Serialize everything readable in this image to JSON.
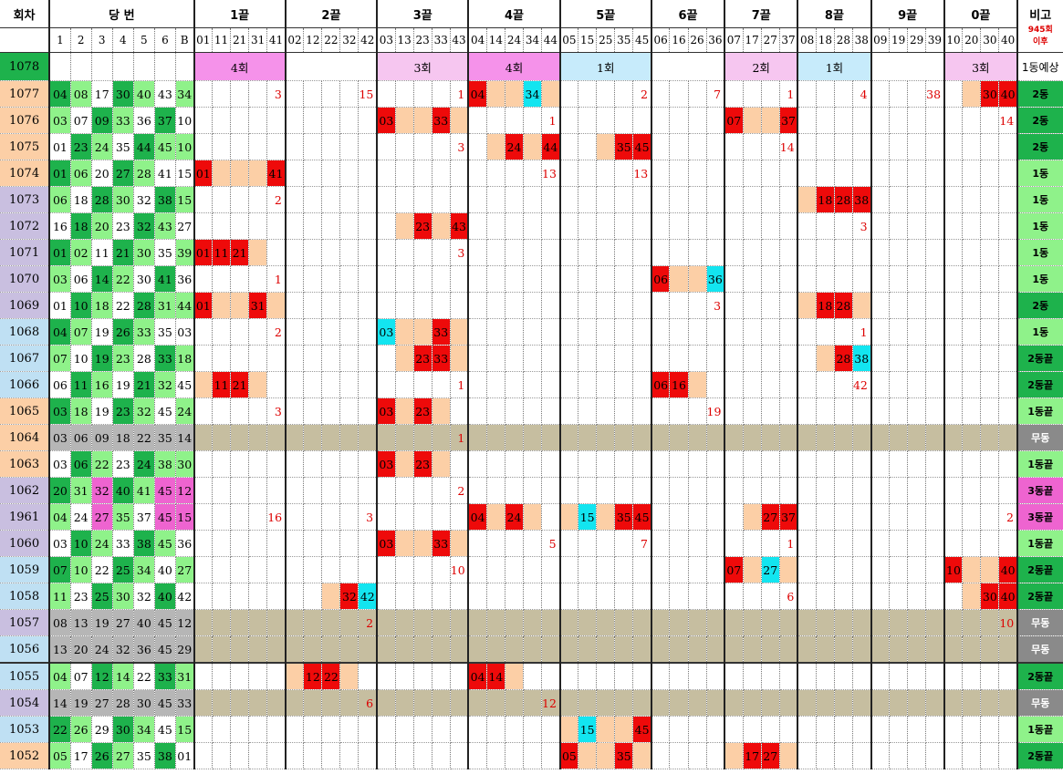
{
  "header": {
    "round_label": "회차",
    "draw_label": "당 번",
    "groups": [
      "1끝",
      "2끝",
      "3끝",
      "4끝",
      "5끝",
      "6끝",
      "7끝",
      "8끝",
      "9끝",
      "0끝"
    ],
    "note_label": "비고",
    "note_sub1": "945회",
    "note_sub2": "이후",
    "ball_cols": [
      "1",
      "2",
      "3",
      "4",
      "5",
      "6",
      "B"
    ],
    "group_cols": [
      [
        "01",
        "11",
        "21",
        "31",
        "41"
      ],
      [
        "02",
        "12",
        "22",
        "32",
        "42"
      ],
      [
        "03",
        "13",
        "23",
        "33",
        "43"
      ],
      [
        "04",
        "14",
        "24",
        "34",
        "44"
      ],
      [
        "05",
        "15",
        "25",
        "35",
        "45"
      ],
      [
        "06",
        "16",
        "26",
        "36"
      ],
      [
        "07",
        "17",
        "27",
        "37"
      ],
      [
        "08",
        "18",
        "28",
        "38"
      ],
      [
        "09",
        "19",
        "29",
        "39"
      ],
      [
        "10",
        "20",
        "30",
        "40"
      ]
    ]
  },
  "forecast_row": {
    "round": "1078",
    "band_1": "4회",
    "band_3": "3회",
    "band_4": "4회",
    "band_5": "1회",
    "band_7": "2회",
    "band_8": "1회",
    "band_0": "3회",
    "note": "1동예상"
  },
  "rows": [
    {
      "round": "1077",
      "nums": [
        "04",
        "08",
        "17",
        "30",
        "40",
        "43",
        "34"
      ],
      "note": "2동"
    },
    {
      "round": "1076",
      "nums": [
        "03",
        "07",
        "09",
        "33",
        "36",
        "37",
        "10"
      ],
      "note": "2동"
    },
    {
      "round": "1075",
      "nums": [
        "01",
        "23",
        "24",
        "35",
        "44",
        "45",
        "10"
      ],
      "note": "2동"
    },
    {
      "round": "1074",
      "nums": [
        "01",
        "06",
        "20",
        "27",
        "28",
        "41",
        "15"
      ],
      "note": "1동"
    },
    {
      "round": "1073",
      "nums": [
        "06",
        "18",
        "28",
        "30",
        "32",
        "38",
        "15"
      ],
      "note": "1동"
    },
    {
      "round": "1072",
      "nums": [
        "16",
        "18",
        "20",
        "23",
        "32",
        "43",
        "27"
      ],
      "note": "1동"
    },
    {
      "round": "1071",
      "nums": [
        "01",
        "02",
        "11",
        "21",
        "30",
        "35",
        "39"
      ],
      "note": "1동"
    },
    {
      "round": "1070",
      "nums": [
        "03",
        "06",
        "14",
        "22",
        "30",
        "41",
        "36"
      ],
      "note": "1동"
    },
    {
      "round": "1069",
      "nums": [
        "01",
        "10",
        "18",
        "22",
        "28",
        "31",
        "44"
      ],
      "note": "2동"
    },
    {
      "round": "1068",
      "nums": [
        "04",
        "07",
        "19",
        "26",
        "33",
        "35",
        "03"
      ],
      "note": "1동"
    },
    {
      "round": "1067",
      "nums": [
        "07",
        "10",
        "19",
        "23",
        "28",
        "33",
        "18"
      ],
      "note": "2동끝"
    },
    {
      "round": "1066",
      "nums": [
        "06",
        "11",
        "16",
        "19",
        "21",
        "32",
        "45"
      ],
      "note": "2동끝"
    },
    {
      "round": "1065",
      "nums": [
        "03",
        "18",
        "19",
        "23",
        "32",
        "45",
        "24"
      ],
      "note": "1동끝"
    },
    {
      "round": "1064",
      "nums": [
        "03",
        "06",
        "09",
        "18",
        "22",
        "35",
        "14"
      ],
      "note": "무동"
    },
    {
      "round": "1063",
      "nums": [
        "03",
        "06",
        "22",
        "23",
        "24",
        "38",
        "30"
      ],
      "note": "1동끝"
    },
    {
      "round": "1062",
      "nums": [
        "20",
        "31",
        "32",
        "40",
        "41",
        "45",
        "12"
      ],
      "note": "3동끝"
    },
    {
      "round": "1961",
      "nums": [
        "04",
        "24",
        "27",
        "35",
        "37",
        "45",
        "15"
      ],
      "note": "3동끝"
    },
    {
      "round": "1060",
      "nums": [
        "03",
        "10",
        "24",
        "33",
        "38",
        "45",
        "36"
      ],
      "note": "1동끝"
    },
    {
      "round": "1059",
      "nums": [
        "07",
        "10",
        "22",
        "25",
        "34",
        "40",
        "27"
      ],
      "note": "2동끝"
    },
    {
      "round": "1058",
      "nums": [
        "11",
        "23",
        "25",
        "30",
        "32",
        "40",
        "42"
      ],
      "note": "2동끝"
    },
    {
      "round": "1057",
      "nums": [
        "08",
        "13",
        "19",
        "27",
        "40",
        "45",
        "12"
      ],
      "note": "무동"
    },
    {
      "round": "1056",
      "nums": [
        "13",
        "20",
        "24",
        "32",
        "36",
        "45",
        "29"
      ],
      "note": "무동"
    },
    {
      "round": "1055",
      "nums": [
        "04",
        "07",
        "12",
        "14",
        "22",
        "33",
        "31"
      ],
      "note": "2동끝"
    },
    {
      "round": "1054",
      "nums": [
        "14",
        "19",
        "27",
        "28",
        "30",
        "45",
        "33"
      ],
      "note": "무동"
    },
    {
      "round": "1053",
      "nums": [
        "22",
        "26",
        "29",
        "30",
        "34",
        "45",
        "15"
      ],
      "note": "1동끝"
    },
    {
      "round": "1052",
      "nums": [
        "05",
        "17",
        "26",
        "27",
        "35",
        "38",
        "01"
      ],
      "note": "2동끝"
    }
  ],
  "marks": {
    "1077": {
      "g1": "3",
      "g2": "15",
      "g3": "1",
      "g4": "04|34",
      "g5": "2",
      "g6": "7",
      "g7": "1",
      "g8": "4",
      "g9": "38",
      "g0": "30|40"
    },
    "1076": {
      "g3": "03|33",
      "g4": "1",
      "g7": "07|37",
      "g0": "14"
    },
    "1075": {
      "g3": "3",
      "g4": "24|44",
      "g5": "35|45",
      "g7": "14"
    },
    "1074": {
      "g1": "01|41",
      "g4": "13",
      "g5": "13"
    },
    "1073": {
      "g1": "2",
      "g8": "18|28|38"
    },
    "1072": {
      "g3": "23|43",
      "g8": "3"
    },
    "1071": {
      "g1": "01|11|21",
      "g3": "3"
    },
    "1070": {
      "g1": "1",
      "g6": "06|36"
    },
    "1069": {
      "g1": "01|31",
      "g6": "3",
      "g8": "18|28"
    },
    "1068": {
      "g1": "2",
      "g3": "03|33",
      "g8": "1"
    },
    "1067": {
      "g3": "23|33",
      "g8": "28|38"
    },
    "1066": {
      "g1": "11|21",
      "g3": "1",
      "g6": "06|16",
      "g8": "42"
    },
    "1065": {
      "g1": "3",
      "g3": "03|23",
      "g6": "19"
    },
    "1064": {
      "g3": "1"
    },
    "1063": {
      "g3": "03|23"
    },
    "1062": {
      "g3": "2"
    },
    "1961": {
      "g1": "16",
      "g2": "3",
      "g4": "04|24",
      "g5": "15|35|45",
      "g7": "27|37",
      "g0": "2"
    },
    "1060": {
      "g3": "03|33",
      "g4": "5",
      "g5": "7",
      "g7": "1"
    },
    "1059": {
      "g3": "10",
      "g7": "07|27",
      "g0": "10|40"
    },
    "1058": {
      "g2": "32|42",
      "g7": "6",
      "g0": "30|40"
    },
    "1057": {
      "g2": "2",
      "g0": "10"
    },
    "1055": {
      "g2": "12|22",
      "g4": "04|14"
    },
    "1054": {
      "g2": "6",
      "g4": "12"
    },
    "1053": {
      "g5": "15|45"
    },
    "1052": {
      "g5": "05|35",
      "g7": "17|27"
    }
  }
}
